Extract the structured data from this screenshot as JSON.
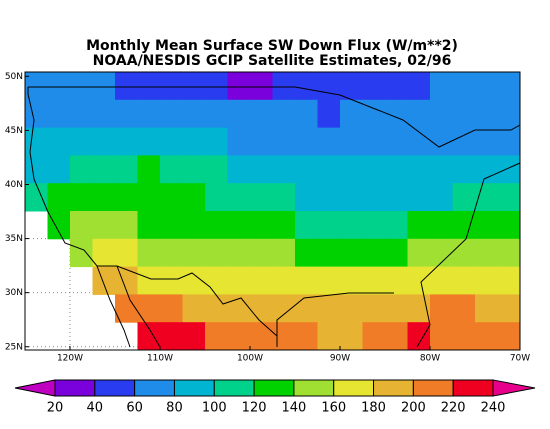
{
  "title": [
    "Monthly Mean Surface SW Down Flux (W/m**2)",
    "NOAA/NESDIS GCIP Satellite Estimates, 02/96"
  ],
  "map": {
    "xlim": [
      -125,
      -70
    ],
    "ylim": [
      24.7,
      50.4
    ],
    "xticks": [
      {
        "value": -120,
        "label": "120W"
      },
      {
        "value": -110,
        "label": "110W"
      },
      {
        "value": -100,
        "label": "100W"
      },
      {
        "value": -90,
        "label": "90W"
      },
      {
        "value": -80,
        "label": "80W"
      },
      {
        "value": -70,
        "label": "70W"
      }
    ],
    "yticks": [
      {
        "value": 25,
        "label": "25N"
      },
      {
        "value": 30,
        "label": "30N"
      },
      {
        "value": 35,
        "label": "35N"
      },
      {
        "value": 40,
        "label": "40N"
      },
      {
        "value": 45,
        "label": "45N"
      },
      {
        "value": 50,
        "label": "50N"
      }
    ],
    "grid": true,
    "values": [
      [
        70,
        60,
        60,
        60,
        50,
        50,
        50,
        50,
        40,
        30,
        30,
        40,
        50,
        50,
        50,
        50,
        50,
        50,
        60,
        60,
        60,
        60
      ],
      [
        70,
        70,
        70,
        70,
        70,
        70,
        70,
        60,
        60,
        60,
        60,
        60,
        60,
        50,
        60,
        60,
        60,
        60,
        60,
        60,
        70,
        70
      ],
      [
        80,
        80,
        90,
        90,
        90,
        80,
        80,
        80,
        80,
        70,
        70,
        70,
        70,
        70,
        70,
        70,
        70,
        70,
        70,
        70,
        70,
        70
      ],
      [
        90,
        90,
        110,
        110,
        110,
        130,
        110,
        110,
        100,
        90,
        90,
        80,
        80,
        80,
        80,
        80,
        80,
        80,
        80,
        80,
        80,
        80
      ],
      [
        110,
        120,
        130,
        130,
        130,
        120,
        120,
        120,
        110,
        110,
        100,
        100,
        90,
        90,
        90,
        90,
        90,
        90,
        90,
        100,
        100,
        100
      ],
      [
        null,
        130,
        140,
        140,
        140,
        130,
        130,
        130,
        130,
        130,
        120,
        120,
        110,
        110,
        110,
        110,
        110,
        120,
        120,
        130,
        130,
        120
      ],
      [
        null,
        null,
        150,
        160,
        160,
        150,
        150,
        150,
        140,
        150,
        140,
        140,
        130,
        130,
        130,
        130,
        130,
        140,
        140,
        140,
        150,
        150
      ],
      [
        null,
        null,
        null,
        180,
        180,
        170,
        170,
        160,
        160,
        160,
        170,
        170,
        160,
        160,
        160,
        170,
        170,
        170,
        170,
        170,
        170,
        160
      ],
      [
        null,
        null,
        null,
        null,
        200,
        210,
        200,
        190,
        190,
        180,
        180,
        180,
        180,
        180,
        190,
        190,
        190,
        190,
        200,
        200,
        190,
        190
      ],
      [
        null,
        null,
        null,
        null,
        null,
        220,
        230,
        220,
        210,
        200,
        200,
        200,
        200,
        190,
        190,
        200,
        210,
        220,
        210,
        210,
        210,
        200
      ]
    ]
  },
  "colorbar": {
    "levels": [
      20,
      40,
      60,
      80,
      100,
      120,
      140,
      160,
      180,
      200,
      220,
      240
    ],
    "colors": [
      "#c000c0",
      "#7a00dc",
      "#2a3cf0",
      "#1e8ce8",
      "#00b4d2",
      "#00d28c",
      "#00d200",
      "#a0e032",
      "#e6e632",
      "#e6b432",
      "#f07c28",
      "#f00020",
      "#e6008c"
    ]
  }
}
